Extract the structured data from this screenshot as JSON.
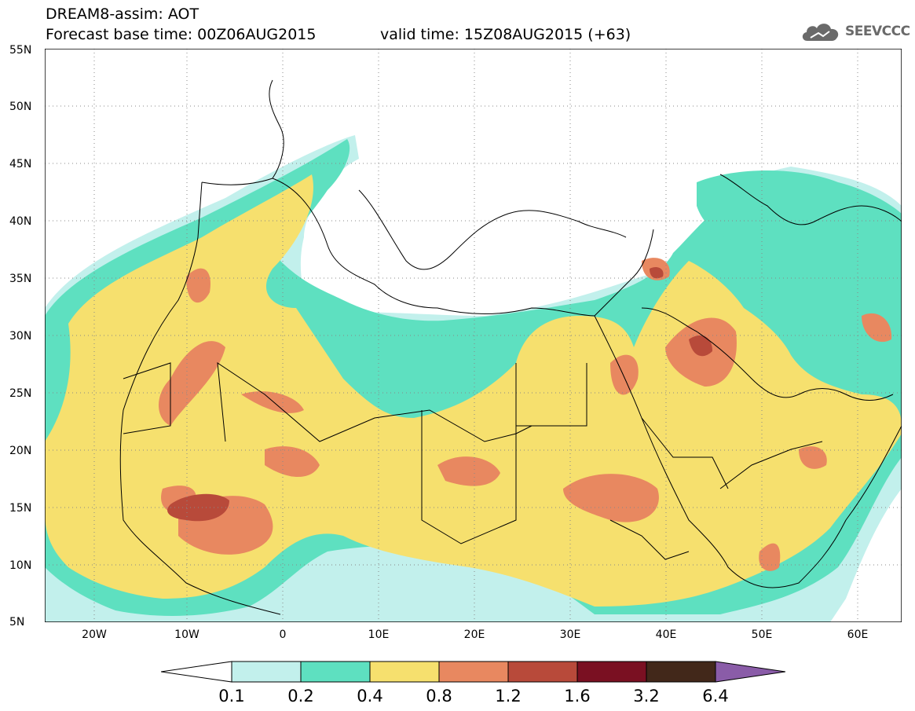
{
  "header": {
    "line1": "DREAM8-assim: AOT",
    "line2": "Forecast base time: 00Z06AUG2015",
    "valid": "valid time: 15Z08AUG2015 (+63)"
  },
  "logo": {
    "text": "SEEVCCC",
    "icon": "cloud-icon"
  },
  "map": {
    "lat_labels": [
      "55N",
      "50N",
      "45N",
      "40N",
      "35N",
      "30N",
      "25N",
      "20N",
      "15N",
      "10N",
      "5N"
    ],
    "lon_labels": [
      "20W",
      "10W",
      "0",
      "10E",
      "20E",
      "30E",
      "40E",
      "50E",
      "60E"
    ]
  },
  "colorbar": {
    "labels": [
      "0.1",
      "0.2",
      "0.4",
      "0.8",
      "1.2",
      "1.6",
      "3.2",
      "6.4"
    ],
    "colors": [
      "#ffffff",
      "#c2f0ec",
      "#5ee0c0",
      "#f6e06e",
      "#e88860",
      "#b84a3a",
      "#7a1022",
      "#42281a",
      "#8a5ca8"
    ]
  }
}
